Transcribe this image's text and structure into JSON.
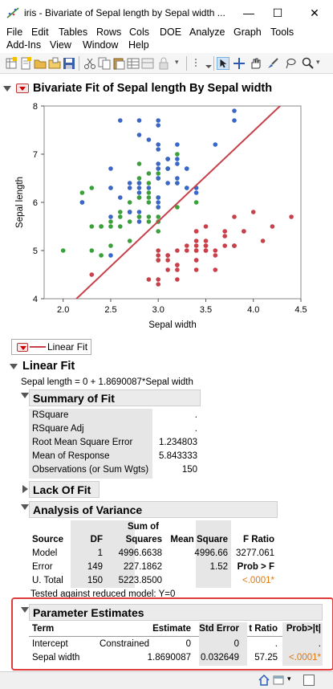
{
  "window": {
    "title": "iris - Bivariate of Sepal length by Sepal width ...",
    "minimize": "—",
    "maximize": "☐",
    "close": "✕"
  },
  "menu": {
    "row1": [
      "File",
      "Edit",
      "Tables",
      "Rows",
      "Cols",
      "DOE",
      "Analyze",
      "Graph",
      "Tools"
    ],
    "row2": [
      "Add-Ins",
      "View",
      "Window",
      "Help"
    ]
  },
  "report": {
    "title": "Bivariate Fit of Sepal length By Sepal width",
    "legend_label": "Linear Fit",
    "linear_fit_title": "Linear Fit",
    "equation": "Sepal length = 0 + 1.8690087*Sepal width"
  },
  "chart_data": {
    "type": "scatter",
    "xlabel": "Sepal width",
    "ylabel": "Sepal length",
    "xlim": [
      1.8,
      4.5
    ],
    "ylim": [
      4,
      8
    ],
    "xticks": [
      "2.0",
      "2.5",
      "3.0",
      "3.5",
      "4.0",
      "4.5"
    ],
    "yticks": [
      "4",
      "5",
      "6",
      "7",
      "8"
    ],
    "fit_line": {
      "intercept": 0,
      "slope": 1.8690087,
      "color": "#c8404a"
    },
    "series": [
      {
        "color": "#c8404a",
        "points": [
          [
            3.5,
            5.1
          ],
          [
            3.0,
            4.9
          ],
          [
            3.2,
            4.7
          ],
          [
            3.1,
            4.6
          ],
          [
            3.6,
            5.0
          ],
          [
            3.9,
            5.4
          ],
          [
            3.4,
            4.6
          ],
          [
            3.4,
            5.0
          ],
          [
            2.9,
            4.4
          ],
          [
            3.1,
            4.9
          ],
          [
            3.7,
            5.4
          ],
          [
            3.4,
            4.8
          ],
          [
            3.0,
            4.8
          ],
          [
            3.0,
            4.3
          ],
          [
            4.0,
            5.8
          ],
          [
            4.4,
            5.7
          ],
          [
            3.9,
            5.4
          ],
          [
            3.5,
            5.1
          ],
          [
            3.8,
            5.7
          ],
          [
            3.8,
            5.1
          ],
          [
            3.4,
            5.4
          ],
          [
            3.7,
            5.1
          ],
          [
            3.6,
            4.6
          ],
          [
            3.3,
            5.1
          ],
          [
            3.4,
            4.8
          ],
          [
            3.0,
            5.0
          ],
          [
            3.4,
            5.0
          ],
          [
            3.5,
            5.2
          ],
          [
            3.4,
            5.2
          ],
          [
            3.2,
            4.7
          ],
          [
            3.1,
            4.8
          ],
          [
            3.4,
            5.4
          ],
          [
            4.1,
            5.2
          ],
          [
            4.2,
            5.5
          ],
          [
            3.1,
            4.9
          ],
          [
            3.2,
            5.0
          ],
          [
            3.5,
            5.5
          ],
          [
            3.6,
            4.9
          ],
          [
            3.0,
            4.4
          ],
          [
            3.4,
            5.1
          ],
          [
            3.5,
            5.0
          ],
          [
            2.3,
            4.5
          ],
          [
            3.2,
            4.4
          ],
          [
            3.5,
            5.0
          ],
          [
            3.8,
            5.1
          ],
          [
            3.0,
            4.8
          ],
          [
            3.8,
            5.1
          ],
          [
            3.2,
            4.6
          ],
          [
            3.7,
            5.3
          ],
          [
            3.3,
            5.0
          ]
        ]
      },
      {
        "color": "#3aa03a",
        "points": [
          [
            3.2,
            7.0
          ],
          [
            3.2,
            6.4
          ],
          [
            3.1,
            6.9
          ],
          [
            2.3,
            5.5
          ],
          [
            2.8,
            6.5
          ],
          [
            2.8,
            5.7
          ],
          [
            3.3,
            6.3
          ],
          [
            2.4,
            4.9
          ],
          [
            2.9,
            6.6
          ],
          [
            2.7,
            5.2
          ],
          [
            2.0,
            5.0
          ],
          [
            3.0,
            5.9
          ],
          [
            2.2,
            6.0
          ],
          [
            2.9,
            6.1
          ],
          [
            2.9,
            5.6
          ],
          [
            3.1,
            6.7
          ],
          [
            3.0,
            5.6
          ],
          [
            2.7,
            5.8
          ],
          [
            2.2,
            6.2
          ],
          [
            2.5,
            5.6
          ],
          [
            3.2,
            5.9
          ],
          [
            2.8,
            6.1
          ],
          [
            2.5,
            6.3
          ],
          [
            2.8,
            6.1
          ],
          [
            2.9,
            6.4
          ],
          [
            3.0,
            6.6
          ],
          [
            2.8,
            6.8
          ],
          [
            3.0,
            6.7
          ],
          [
            2.9,
            6.0
          ],
          [
            2.6,
            5.7
          ],
          [
            2.4,
            5.5
          ],
          [
            2.4,
            5.5
          ],
          [
            2.7,
            5.8
          ],
          [
            2.7,
            6.0
          ],
          [
            3.0,
            5.4
          ],
          [
            3.4,
            6.0
          ],
          [
            3.1,
            6.7
          ],
          [
            2.3,
            6.3
          ],
          [
            3.0,
            5.6
          ],
          [
            2.5,
            5.5
          ],
          [
            2.6,
            5.5
          ],
          [
            3.0,
            6.1
          ],
          [
            2.6,
            5.8
          ],
          [
            2.3,
            5.0
          ],
          [
            2.7,
            5.6
          ],
          [
            3.0,
            5.7
          ],
          [
            2.9,
            5.7
          ],
          [
            2.9,
            6.2
          ],
          [
            2.5,
            5.1
          ],
          [
            2.8,
            5.7
          ]
        ]
      },
      {
        "color": "#3a66c8",
        "points": [
          [
            3.3,
            6.3
          ],
          [
            2.7,
            5.8
          ],
          [
            3.0,
            7.1
          ],
          [
            2.9,
            6.3
          ],
          [
            3.0,
            6.5
          ],
          [
            3.0,
            7.6
          ],
          [
            2.5,
            4.9
          ],
          [
            2.9,
            7.3
          ],
          [
            2.5,
            6.7
          ],
          [
            3.6,
            7.2
          ],
          [
            3.2,
            6.5
          ],
          [
            2.7,
            6.4
          ],
          [
            3.0,
            6.8
          ],
          [
            2.5,
            5.7
          ],
          [
            2.8,
            5.8
          ],
          [
            3.2,
            6.4
          ],
          [
            3.0,
            6.5
          ],
          [
            3.8,
            7.7
          ],
          [
            2.6,
            7.7
          ],
          [
            2.2,
            6.0
          ],
          [
            3.2,
            6.9
          ],
          [
            2.8,
            5.6
          ],
          [
            2.8,
            7.7
          ],
          [
            2.7,
            6.3
          ],
          [
            3.3,
            6.7
          ],
          [
            3.2,
            7.2
          ],
          [
            2.8,
            6.2
          ],
          [
            3.0,
            6.1
          ],
          [
            2.8,
            6.4
          ],
          [
            3.0,
            7.2
          ],
          [
            2.8,
            7.4
          ],
          [
            3.8,
            7.9
          ],
          [
            2.8,
            6.4
          ],
          [
            2.8,
            6.3
          ],
          [
            2.6,
            6.1
          ],
          [
            3.0,
            7.7
          ],
          [
            3.4,
            6.3
          ],
          [
            3.1,
            6.4
          ],
          [
            3.0,
            6.0
          ],
          [
            3.1,
            6.9
          ],
          [
            3.1,
            6.7
          ],
          [
            3.1,
            6.9
          ],
          [
            2.7,
            5.8
          ],
          [
            3.2,
            6.8
          ],
          [
            3.3,
            6.7
          ],
          [
            3.0,
            6.7
          ],
          [
            2.5,
            6.3
          ],
          [
            3.0,
            6.5
          ],
          [
            3.4,
            6.2
          ],
          [
            3.0,
            5.9
          ]
        ]
      }
    ]
  },
  "summary_of_fit": {
    "title": "Summary of Fit",
    "rows": [
      {
        "label": "RSquare",
        "value": "."
      },
      {
        "label": "RSquare Adj",
        "value": "."
      },
      {
        "label": "Root Mean Square Error",
        "value": "1.234803"
      },
      {
        "label": "Mean of Response",
        "value": "5.843333"
      },
      {
        "label": "Observations (or Sum Wgts)",
        "value": "150"
      }
    ]
  },
  "lack_of_fit": {
    "title": "Lack Of Fit"
  },
  "anova": {
    "title": "Analysis of Variance",
    "headers": {
      "source": "Source",
      "df": "DF",
      "ss_top": "Sum of",
      "ss_bottom": "Squares",
      "ms": "Mean Square",
      "f": "F Ratio"
    },
    "rows": [
      {
        "source": "Model",
        "df": "1",
        "ss": "4996.6638",
        "ms": "4996.66",
        "f": "3277.061"
      },
      {
        "source": "Error",
        "df": "149",
        "ss": "227.1862",
        "ms": "1.52",
        "f": "Prob > F"
      },
      {
        "source": "U. Total",
        "df": "150",
        "ss": "5223.8500",
        "ms": "",
        "f": "<.0001*"
      }
    ],
    "note": "Tested against reduced model: Y=0"
  },
  "parameter_estimates": {
    "title": "Parameter Estimates",
    "headers": {
      "term": "Term",
      "estimate": "Estimate",
      "se": "Std Error",
      "t": "t Ratio",
      "p": "Prob>|t|"
    },
    "rows": [
      {
        "term": "Intercept",
        "note": "Constrained",
        "estimate": "0",
        "se": "0",
        "t": ".",
        "p": "."
      },
      {
        "term": "Sepal width",
        "note": "",
        "estimate": "1.8690087",
        "se": "0.032649",
        "t": "57.25",
        "p": "<.0001*"
      }
    ]
  }
}
